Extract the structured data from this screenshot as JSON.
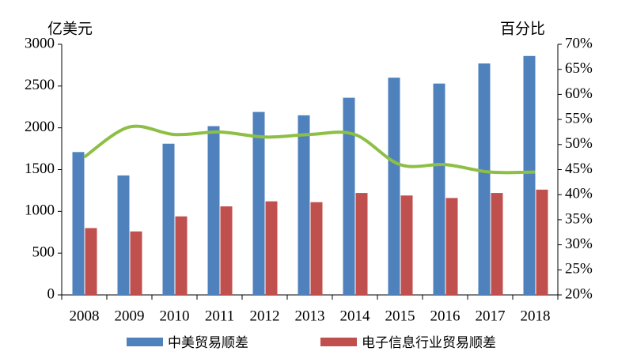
{
  "chart_data": {
    "type": "bar",
    "y_label": "亿美元",
    "y2_label": "百分比",
    "categories": [
      "2008",
      "2009",
      "2010",
      "2011",
      "2012",
      "2013",
      "2014",
      "2015",
      "2016",
      "2017",
      "2018"
    ],
    "series": [
      {
        "name": "中美贸易顺差",
        "type": "bar",
        "color": "#4f81bd",
        "values": [
          1710,
          1430,
          1810,
          2020,
          2190,
          2150,
          2360,
          2600,
          2530,
          2770,
          2860
        ]
      },
      {
        "name": "电子信息行业贸易顺差",
        "type": "bar",
        "color": "#c0504d",
        "values": [
          800,
          760,
          940,
          1060,
          1120,
          1110,
          1220,
          1190,
          1160,
          1220,
          1260
        ]
      },
      {
        "name": null,
        "type": "line",
        "axis": "y2",
        "color": "#8dbf45",
        "values": [
          47.5,
          53.5,
          52,
          52.5,
          51.5,
          52,
          52,
          46,
          46,
          44.5,
          44.5
        ]
      }
    ],
    "ylim": [
      0,
      3000
    ],
    "yticks": [
      0,
      500,
      1000,
      1500,
      2000,
      2500,
      3000
    ],
    "y2lim": [
      20,
      70
    ],
    "y2ticks": [
      {
        "value": 20,
        "label": "20%"
      },
      {
        "value": 25,
        "label": "25%"
      },
      {
        "value": 30,
        "label": "30%"
      },
      {
        "value": 35,
        "label": "35%"
      },
      {
        "value": 40,
        "label": "40%"
      },
      {
        "value": 45,
        "label": "45%"
      },
      {
        "value": 50,
        "label": "50%"
      },
      {
        "value": 55,
        "label": "55%"
      },
      {
        "value": 60,
        "label": "60%"
      },
      {
        "value": 65,
        "label": "65%"
      },
      {
        "value": 70,
        "label": "70%"
      }
    ],
    "legend": "bottom"
  }
}
